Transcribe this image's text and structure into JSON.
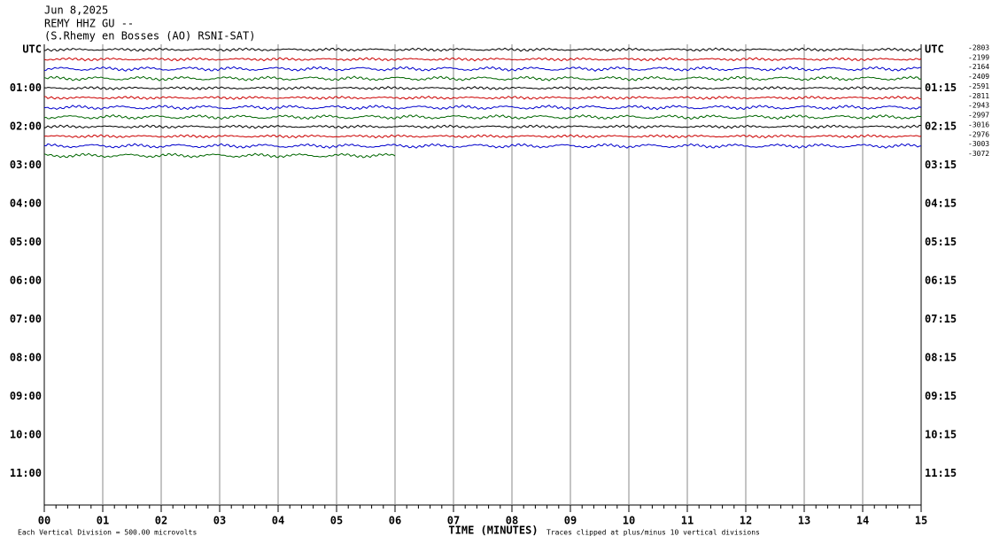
{
  "chart_data": {
    "type": "helicorder",
    "title_lines": [
      "Jun 8,2025",
      "REMY HHZ GU --",
      "(S.Rhemy en Bosses (AO) RSNI-SAT)"
    ],
    "left_labels": [
      "UTC",
      "01:00",
      "02:00",
      "03:00",
      "04:00",
      "05:00",
      "06:00",
      "07:00",
      "08:00",
      "09:00",
      "10:00",
      "11:00"
    ],
    "right_labels": [
      "UTC",
      "01:15",
      "02:15",
      "03:15",
      "04:15",
      "05:15",
      "06:15",
      "07:15",
      "08:15",
      "09:15",
      "10:15",
      "11:15"
    ],
    "xlim": [
      0,
      15
    ],
    "xticks": [
      {
        "value": 0,
        "label": "00"
      },
      {
        "value": 1,
        "label": "01"
      },
      {
        "value": 2,
        "label": "02"
      },
      {
        "value": 3,
        "label": "03"
      },
      {
        "value": 4,
        "label": "04"
      },
      {
        "value": 5,
        "label": "05"
      },
      {
        "value": 6,
        "label": "06"
      },
      {
        "value": 7,
        "label": "07"
      },
      {
        "value": 8,
        "label": "08"
      },
      {
        "value": 9,
        "label": "09"
      },
      10,
      11,
      12,
      13,
      14,
      15
    ],
    "x_label": "TIME (MINUTES)",
    "scale_note": "Each Vertical Division =  500.00 microvolts",
    "clip_note": "Traces clipped at plus/minus 10 vertical divisions",
    "traces": [
      {
        "offset_label": "-2803",
        "color": "#000000",
        "end": 15
      },
      {
        "offset_label": "-2199",
        "color": "#cc0000",
        "end": 15
      },
      {
        "offset_label": "-2164",
        "color": "#0000cc",
        "end": 15
      },
      {
        "offset_label": "-2409",
        "color": "#006600",
        "end": 15
      },
      {
        "offset_label": "-2591",
        "color": "#000000",
        "end": 15
      },
      {
        "offset_label": "-2811",
        "color": "#cc0000",
        "end": 15
      },
      {
        "offset_label": "-2943",
        "color": "#0000cc",
        "end": 15
      },
      {
        "offset_label": "-2997",
        "color": "#006600",
        "end": 15
      },
      {
        "offset_label": "-3016",
        "color": "#000000",
        "end": 15
      },
      {
        "offset_label": "-2976",
        "color": "#cc0000",
        "end": 15
      },
      {
        "offset_label": "-3003",
        "color": "#0000cc",
        "end": 15
      },
      {
        "offset_label": "-3072",
        "color": "#006600",
        "end": 6
      }
    ]
  }
}
